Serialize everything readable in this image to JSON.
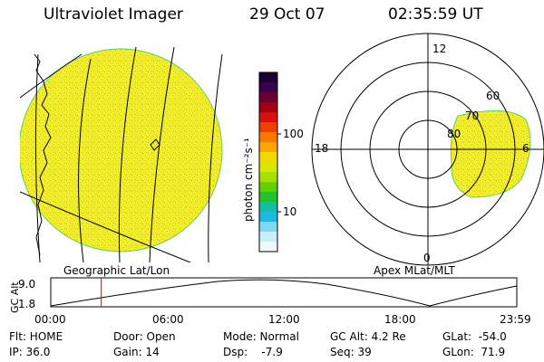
{
  "header": {
    "title": "Ultraviolet Imager",
    "date": "29 Oct 07",
    "time": "02:35:59 UT"
  },
  "colorbar": {
    "unit_label": "photon cm⁻²s⁻¹",
    "ticks": [
      "100",
      "10"
    ],
    "colors": [
      "#1a0030",
      "#3a0050",
      "#6a0030",
      "#a00010",
      "#d81010",
      "#f04000",
      "#f87800",
      "#f8a800",
      "#f0d800",
      "#d8e800",
      "#a8e000",
      "#60d000",
      "#20c030",
      "#10c0a0",
      "#20b8e0",
      "#80d8f0",
      "#c8eef8",
      "#f0f8fc"
    ]
  },
  "panels": {
    "left_label": "Geographic Lat/Lon",
    "right_label": "Apex MLat/MLT"
  },
  "polar": {
    "mlt_labels": [
      "12",
      "18",
      "6",
      "0"
    ],
    "mlat_labels": [
      "80",
      "70",
      "60"
    ]
  },
  "altitude_plot": {
    "ylabel": "GC Alt",
    "yticks": [
      "9.0",
      "1.8"
    ],
    "xticks": [
      "00:00",
      "06:00",
      "12:00",
      "18:00",
      "23:59"
    ],
    "current_time_hours": 2.6
  },
  "info": {
    "flt": "Flt: HOME",
    "ip": "IP: 36.0",
    "door": "Door: Open",
    "gain": "Gain: 14",
    "mode": "Mode: Normal",
    "dsp": "Dsp:    -7.9",
    "gcalt": "GC Alt: 4.2 Re",
    "seq": "Seq: 39",
    "glat": "GLat:  -54.0",
    "glon": "GLon:  71.9"
  },
  "colors": {
    "image_fill": "#f4ec30",
    "image_edge": "#60d060",
    "marker": "#d00000"
  }
}
